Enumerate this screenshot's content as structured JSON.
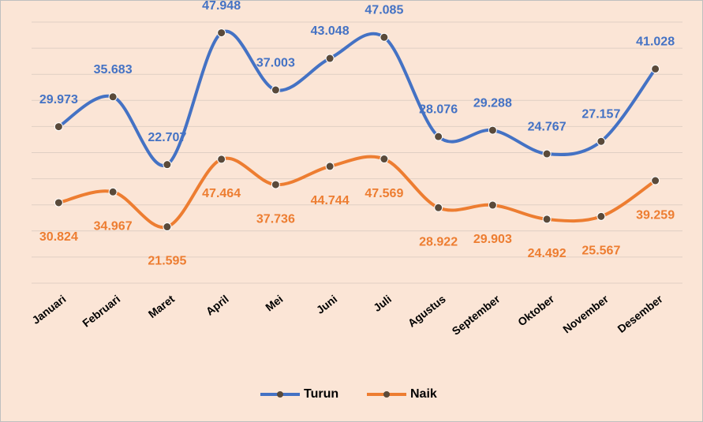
{
  "chart_data": {
    "type": "line",
    "categories": [
      "Januari",
      "Februari",
      "Maret",
      "April",
      "Mei",
      "Juni",
      "Juli",
      "Agustus",
      "September",
      "Oktober",
      "November",
      "Desember"
    ],
    "series": [
      {
        "name": "Turun",
        "color": "#4472c4",
        "values": [
          29973,
          35683,
          22707,
          47948,
          37003,
          43048,
          47085,
          28076,
          29288,
          24767,
          27157,
          41028
        ],
        "value_labels": [
          "29.973",
          "35.683",
          "22.707",
          "47.948",
          "37.003",
          "43.048",
          "47.085",
          "28.076",
          "29.288",
          "24.767",
          "27.157",
          "41.028"
        ]
      },
      {
        "name": "Naik",
        "color": "#ed7d31",
        "axis": "y2",
        "values": [
          30824,
          34967,
          21595,
          47464,
          37736,
          44744,
          47569,
          28922,
          29903,
          24492,
          25567,
          39259
        ],
        "value_labels": [
          "30.824",
          "34.967",
          "21.595",
          "47.464",
          "37.736",
          "44.744",
          "47.569",
          "28.922",
          "29.903",
          "24.492",
          "25.567",
          "39.259"
        ]
      }
    ],
    "ylim": [
      0,
      50000
    ],
    "yticks": [
      0,
      5000,
      10000,
      15000,
      20000,
      25000,
      30000,
      35000,
      40000,
      45000,
      50000
    ],
    "y2lim": [
      0,
      100000
    ],
    "grid": true,
    "legend": "bottom"
  }
}
